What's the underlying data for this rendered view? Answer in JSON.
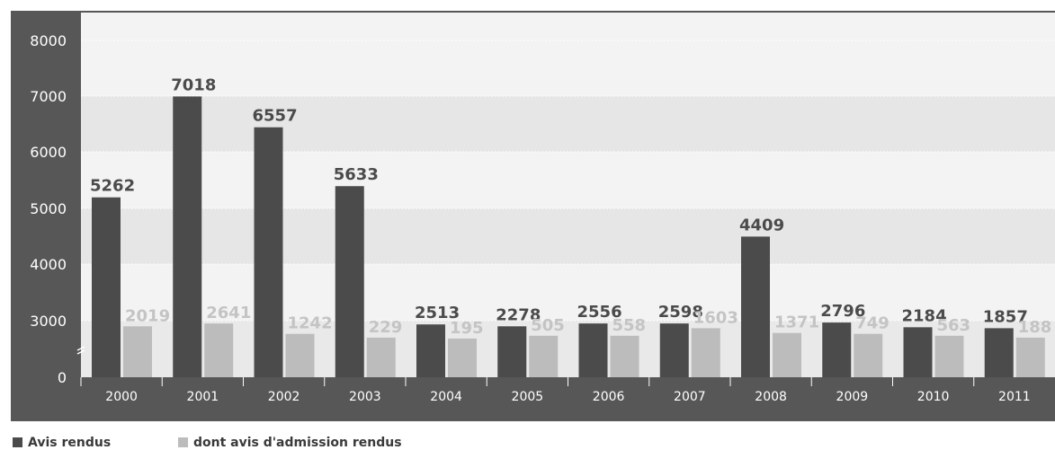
{
  "chart_data": {
    "type": "bar",
    "categories": [
      "2000",
      "2001",
      "2002",
      "2003",
      "2004",
      "2005",
      "2006",
      "2007",
      "2008",
      "2009",
      "2010",
      "2011"
    ],
    "series": [
      {
        "name": "Avis rendus",
        "values": [
          5262,
          7018,
          6557,
          5633,
          2513,
          2278,
          2556,
          2598,
          4409,
          2796,
          2184,
          1857
        ],
        "bar_values": [
          5200,
          7000,
          6450,
          5400,
          2800,
          2700,
          2850,
          2850,
          4500,
          2900,
          2650,
          2600
        ],
        "color": "#4b4b4b"
      },
      {
        "name": "dont avis d'admission rendus",
        "values": [
          2019,
          2641,
          1242,
          229,
          195,
          505,
          558,
          1603,
          1371,
          749,
          563,
          188
        ],
        "bar_values": [
          2700,
          2850,
          2300,
          2100,
          2050,
          2200,
          2200,
          2600,
          2350,
          2300,
          2200,
          2100
        ],
        "color": "#bcbcbc"
      }
    ],
    "yticks": [
      "0",
      "3000",
      "4000",
      "5000",
      "6000",
      "7000",
      "8000"
    ],
    "ytick_values": [
      0,
      3000,
      4000,
      5000,
      6000,
      7000,
      8000
    ],
    "axis_break": {
      "lower": 0,
      "upper": 3000
    },
    "ylim": [
      0,
      8000
    ],
    "title": "",
    "xlabel": "",
    "ylabel": "",
    "grid": true,
    "legend_position": "bottom-left"
  },
  "legend": {
    "item_1": "Avis rendus",
    "item_2": "dont avis d'admission rendus"
  }
}
